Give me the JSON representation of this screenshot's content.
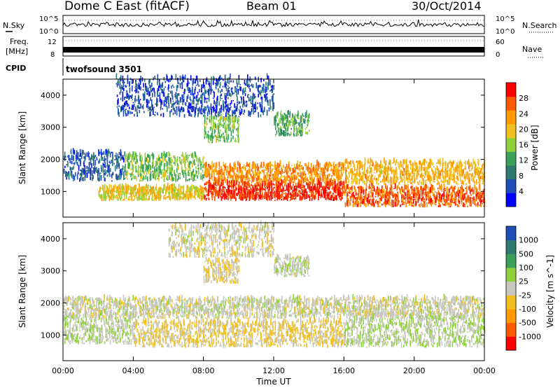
{
  "header": {
    "station": "Dome C East (fitACF)",
    "beam": "Beam 01",
    "date": "30/Oct/2014"
  },
  "noise_panel": {
    "left_label": "N.Sky",
    "right_label": "N.Search",
    "y_top": "10^5",
    "y_bottom": "10^0"
  },
  "freq_panel": {
    "left_label_1": "Freq.",
    "left_label_2": "[MHz]",
    "right_label": "Nave",
    "left_ticks": [
      "12",
      "8"
    ],
    "right_ticks": [
      "60",
      "0"
    ]
  },
  "cpid_panel": {
    "label": "CPID",
    "program": "twofsound 3501"
  },
  "x_axis": {
    "title": "Time UT",
    "ticks": [
      "00:00",
      "04:00",
      "08:00",
      "12:00",
      "16:00",
      "20:00",
      "00:00"
    ],
    "range_hours": [
      0,
      24
    ]
  },
  "colors": {
    "power": [
      "#0000ff",
      "#1e4db8",
      "#2e7a6e",
      "#3aa15a",
      "#8fd13a",
      "#f0c020",
      "#ff9a00",
      "#ff5a00",
      "#ff0000"
    ],
    "velocity": [
      "#ff0000",
      "#ff5a00",
      "#ff9a00",
      "#f0c020",
      "#c8c8c0",
      "#8fd13a",
      "#3aa15a",
      "#2e7a6e",
      "#1e4db8"
    ]
  },
  "chart_data": [
    {
      "type": "heatmap",
      "title": "Power",
      "xlabel": "Time UT",
      "ylabel": "Slant Range [km]",
      "xlim": [
        0,
        24
      ],
      "ylim": [
        200,
        4500
      ],
      "y_ticks": [
        1000,
        2000,
        3000,
        4000
      ],
      "colorbar": {
        "label": "Power [dB]",
        "ticks": [
          "4",
          "8",
          "12",
          "16",
          "20",
          "24",
          "28"
        ],
        "range": [
          0,
          30
        ]
      },
      "bands": [
        {
          "t0": 0.0,
          "t1": 3.5,
          "r0": 1300,
          "r1": 2200,
          "value": 6
        },
        {
          "t0": 3.5,
          "t1": 8.0,
          "r0": 1300,
          "r1": 2100,
          "value": 14
        },
        {
          "t0": 8.0,
          "t1": 16.0,
          "r0": 1200,
          "r1": 1800,
          "value": 22
        },
        {
          "t0": 16.0,
          "t1": 24.0,
          "r0": 1200,
          "r1": 1900,
          "value": 20
        },
        {
          "t0": 2.0,
          "t1": 8.0,
          "r0": 700,
          "r1": 1100,
          "value": 18
        },
        {
          "t0": 8.0,
          "t1": 16.0,
          "r0": 700,
          "r1": 1200,
          "value": 27
        },
        {
          "t0": 16.0,
          "t1": 24.0,
          "r0": 500,
          "r1": 1100,
          "value": 25
        },
        {
          "t0": 8.0,
          "t1": 10.0,
          "r0": 2500,
          "r1": 3300,
          "value": 14
        },
        {
          "t0": 12.0,
          "t1": 14.0,
          "r0": 2700,
          "r1": 3400,
          "value": 12
        },
        {
          "t0": 3.0,
          "t1": 12.0,
          "r0": 3300,
          "r1": 4500,
          "value": 5
        }
      ]
    },
    {
      "type": "heatmap",
      "title": "Velocity",
      "xlabel": "Time UT",
      "ylabel": "Slant Range [km]",
      "xlim": [
        0,
        24
      ],
      "ylim": [
        200,
        4500
      ],
      "y_ticks": [
        1000,
        2000,
        3000,
        4000
      ],
      "colorbar": {
        "label": "Velocity [m s^-1]",
        "ticks": [
          "-1000",
          "-500",
          "-100",
          "-25",
          "25",
          "100",
          "500",
          "1000"
        ],
        "range": [
          -1500,
          1500
        ]
      },
      "bands": [
        {
          "t0": 0.0,
          "t1": 24.0,
          "r0": 1500,
          "r1": 2100,
          "value": 0
        },
        {
          "t0": 0.0,
          "t1": 4.0,
          "r0": 700,
          "r1": 1500,
          "value": 120
        },
        {
          "t0": 4.0,
          "t1": 16.0,
          "r0": 600,
          "r1": 1400,
          "value": -200
        },
        {
          "t0": 16.0,
          "t1": 24.0,
          "r0": 600,
          "r1": 1500,
          "value": 150
        },
        {
          "t0": 8.0,
          "t1": 10.0,
          "r0": 2600,
          "r1": 3300,
          "value": -150
        },
        {
          "t0": 12.0,
          "t1": 14.0,
          "r0": 2800,
          "r1": 3400,
          "value": 60
        },
        {
          "t0": 6.0,
          "t1": 12.0,
          "r0": 3400,
          "r1": 4400,
          "value": -40
        }
      ]
    }
  ]
}
